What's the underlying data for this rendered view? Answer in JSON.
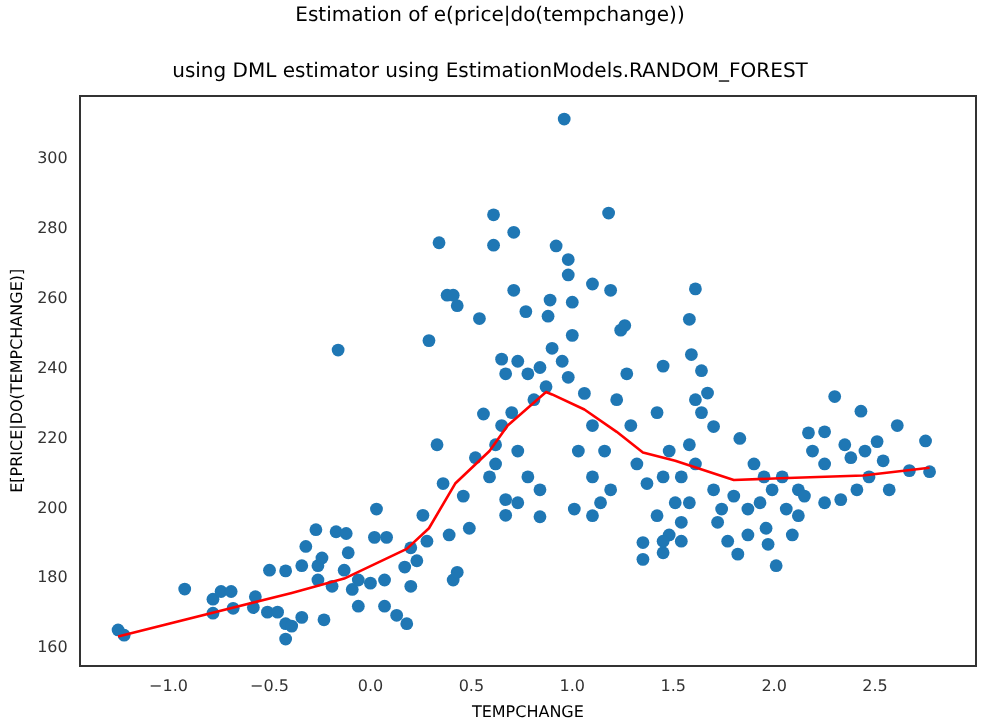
{
  "chart_data": {
    "type": "scatter",
    "title": "Estimation of e(price|do(tempchange))",
    "subtitle": "using DML estimator using EstimationModels.RANDOM_FOREST",
    "xlabel": "TEMPCHANGE",
    "ylabel": "E[PRICE|DO(TEMPCHANGE)]",
    "xlim": [
      -1.44,
      3.0
    ],
    "ylim": [
      155,
      318
    ],
    "xticks": [
      {
        "value": -1.0,
        "label": "−1.0"
      },
      {
        "value": -0.5,
        "label": "−0.5"
      },
      {
        "value": 0,
        "label": "0.0"
      },
      {
        "value": 0.5,
        "label": "0.5"
      },
      {
        "value": 1.0,
        "label": "1.0"
      },
      {
        "value": 1.5,
        "label": "1.5"
      },
      {
        "value": 2.0,
        "label": "2.0"
      },
      {
        "value": 2.5,
        "label": "2.5"
      }
    ],
    "yticks": [
      160,
      180,
      200,
      220,
      240,
      260,
      280,
      300
    ],
    "grid": false,
    "legend": false,
    "series": [
      {
        "type": "scatter",
        "color": "#1f77b4",
        "marker": "circle",
        "x": [
          -1.25,
          -1.22,
          -0.92,
          -0.78,
          -0.78,
          -0.74,
          -0.69,
          -0.68,
          -0.58,
          -0.57,
          -0.5,
          -0.51,
          -0.46,
          -0.42,
          -0.42,
          -0.42,
          -0.39,
          -0.34,
          -0.34,
          -0.32,
          -0.27,
          -0.26,
          -0.23,
          -0.24,
          -0.16,
          -0.17,
          -0.12,
          -0.11,
          0.03,
          0.02,
          0.08,
          -0.06,
          0.0,
          0.07,
          0.18,
          0.13,
          -0.26,
          -0.19,
          -0.09,
          -0.06,
          -0.13,
          0.07,
          0.17,
          0.2,
          0.29,
          0.34,
          0.38,
          0.41,
          0.43,
          0.54,
          0.61,
          0.61,
          0.65,
          0.67,
          0.56,
          0.33,
          0.36,
          0.41,
          0.43,
          0.28,
          0.2,
          0.26,
          0.23,
          0.52,
          0.49,
          0.59,
          0.67,
          0.46,
          0.39,
          0.62,
          0.67,
          0.96,
          1.18,
          0.71,
          0.92,
          0.98,
          0.98,
          0.71,
          1.1,
          1.19,
          1.61,
          1.58,
          1.0,
          0.89,
          0.88,
          0.77,
          1.24,
          1.26,
          1.45,
          1.59,
          1.64,
          2.3,
          2.43,
          2.61,
          2.75,
          2.77,
          2.17,
          1.01,
          1.35,
          1.35,
          2.01,
          1.82,
          1.97,
          1.45,
          1.0,
          0.9,
          0.95,
          0.84,
          0.78,
          0.73,
          0.87,
          0.98,
          1.06,
          0.81,
          0.7,
          0.65,
          0.73,
          0.62,
          0.78,
          0.84,
          0.73,
          0.84,
          1.1,
          1.16,
          1.1,
          1.19,
          1.1,
          1.22,
          1.27,
          1.29,
          1.32,
          1.37,
          1.14,
          1.03,
          1.42,
          1.48,
          1.45,
          1.51,
          1.42,
          1.48,
          1.54,
          1.61,
          1.64,
          1.58,
          1.67,
          1.7,
          1.61,
          1.54,
          1.7,
          1.58,
          1.54,
          1.45,
          1.83,
          1.74,
          1.8,
          1.87,
          1.9,
          1.72,
          1.77,
          1.87,
          1.93,
          1.99,
          1.96,
          2.06,
          2.09,
          2.12,
          2.04,
          2.12,
          1.95,
          2.19,
          2.25,
          2.35,
          2.38,
          2.45,
          2.51,
          2.54,
          2.47,
          2.57,
          2.67,
          2.25,
          2.33,
          2.15,
          2.41,
          2.25
        ],
        "values": [
          165.2,
          163.7,
          176.9,
          174,
          170,
          176.2,
          176.2,
          171.4,
          171.6,
          174.7,
          182.3,
          170.3,
          170.3,
          182.1,
          167,
          162.6,
          166.3,
          183.6,
          168.8,
          189.1,
          193.9,
          183.6,
          168.1,
          185.8,
          245.3,
          193.3,
          192.8,
          187.3,
          199.8,
          191.7,
          191.7,
          172,
          178.6,
          172,
          167,
          169.4,
          179.5,
          177.7,
          176.8,
          179.5,
          182.3,
          179.5,
          183.2,
          177.7,
          248,
          276,
          261,
          261,
          258,
          254.3,
          284,
          275.3,
          242.7,
          238.5,
          227,
          218.2,
          207.1,
          179.5,
          181.7,
          190.6,
          188.7,
          198,
          185,
          214.5,
          194.3,
          209,
          198,
          203.5,
          192.4,
          218.2,
          202.5,
          311.4,
          284.5,
          279,
          275.1,
          271.2,
          266.8,
          262.4,
          264.2,
          262.4,
          262.8,
          254.1,
          259,
          259.6,
          255,
          256.3,
          251,
          252.3,
          240.7,
          244,
          239.4,
          232,
          227.8,
          223.7,
          219.3,
          210.5,
          221.6,
          199.8,
          190.2,
          185.4,
          183.6,
          186.9,
          189.7,
          187.3,
          249.5,
          245.8,
          242.1,
          240.3,
          238.5,
          242.1,
          234.8,
          237.5,
          232.9,
          231.1,
          227.4,
          223.7,
          216.4,
          212.7,
          209,
          205.3,
          201.6,
          197.6,
          223.7,
          216.4,
          209,
          205.3,
          197.9,
          231.1,
          238.5,
          223.7,
          212.7,
          207.1,
          201.6,
          216.4,
          227.4,
          216.4,
          209,
          201.6,
          197.9,
          192.4,
          196,
          231.1,
          227.4,
          218.2,
          233,
          223.4,
          212.7,
          209,
          205.3,
          201.6,
          190.6,
          190.6,
          220,
          199.8,
          203.5,
          199.8,
          212.7,
          196,
          190.6,
          192.4,
          201.6,
          205.3,
          194.3,
          199.8,
          192.4,
          197.9,
          209,
          205.3,
          209,
          216.4,
          212.7,
          218.2,
          214.5,
          216.4,
          219.1,
          213.6,
          209,
          205.3,
          210.8,
          201.6,
          202.5,
          203.5,
          205.3,
          221.9
        ]
      },
      {
        "type": "line",
        "color": "#ff0000",
        "marker": "none",
        "line_style": "solid",
        "x": [
          -1.25,
          -0.39,
          -0.13,
          0.18,
          0.29,
          0.42,
          0.59,
          0.68,
          0.87,
          0.9,
          1.06,
          1.22,
          1.35,
          1.51,
          1.8,
          2.03,
          2.44,
          2.77
        ],
        "values": [
          163.3,
          175.8,
          179.9,
          188.4,
          194.3,
          207.1,
          216.4,
          223.7,
          233.3,
          232.6,
          228.3,
          221.9,
          216,
          213.6,
          208.1,
          208.6,
          209.4,
          211.6
        ]
      }
    ]
  }
}
